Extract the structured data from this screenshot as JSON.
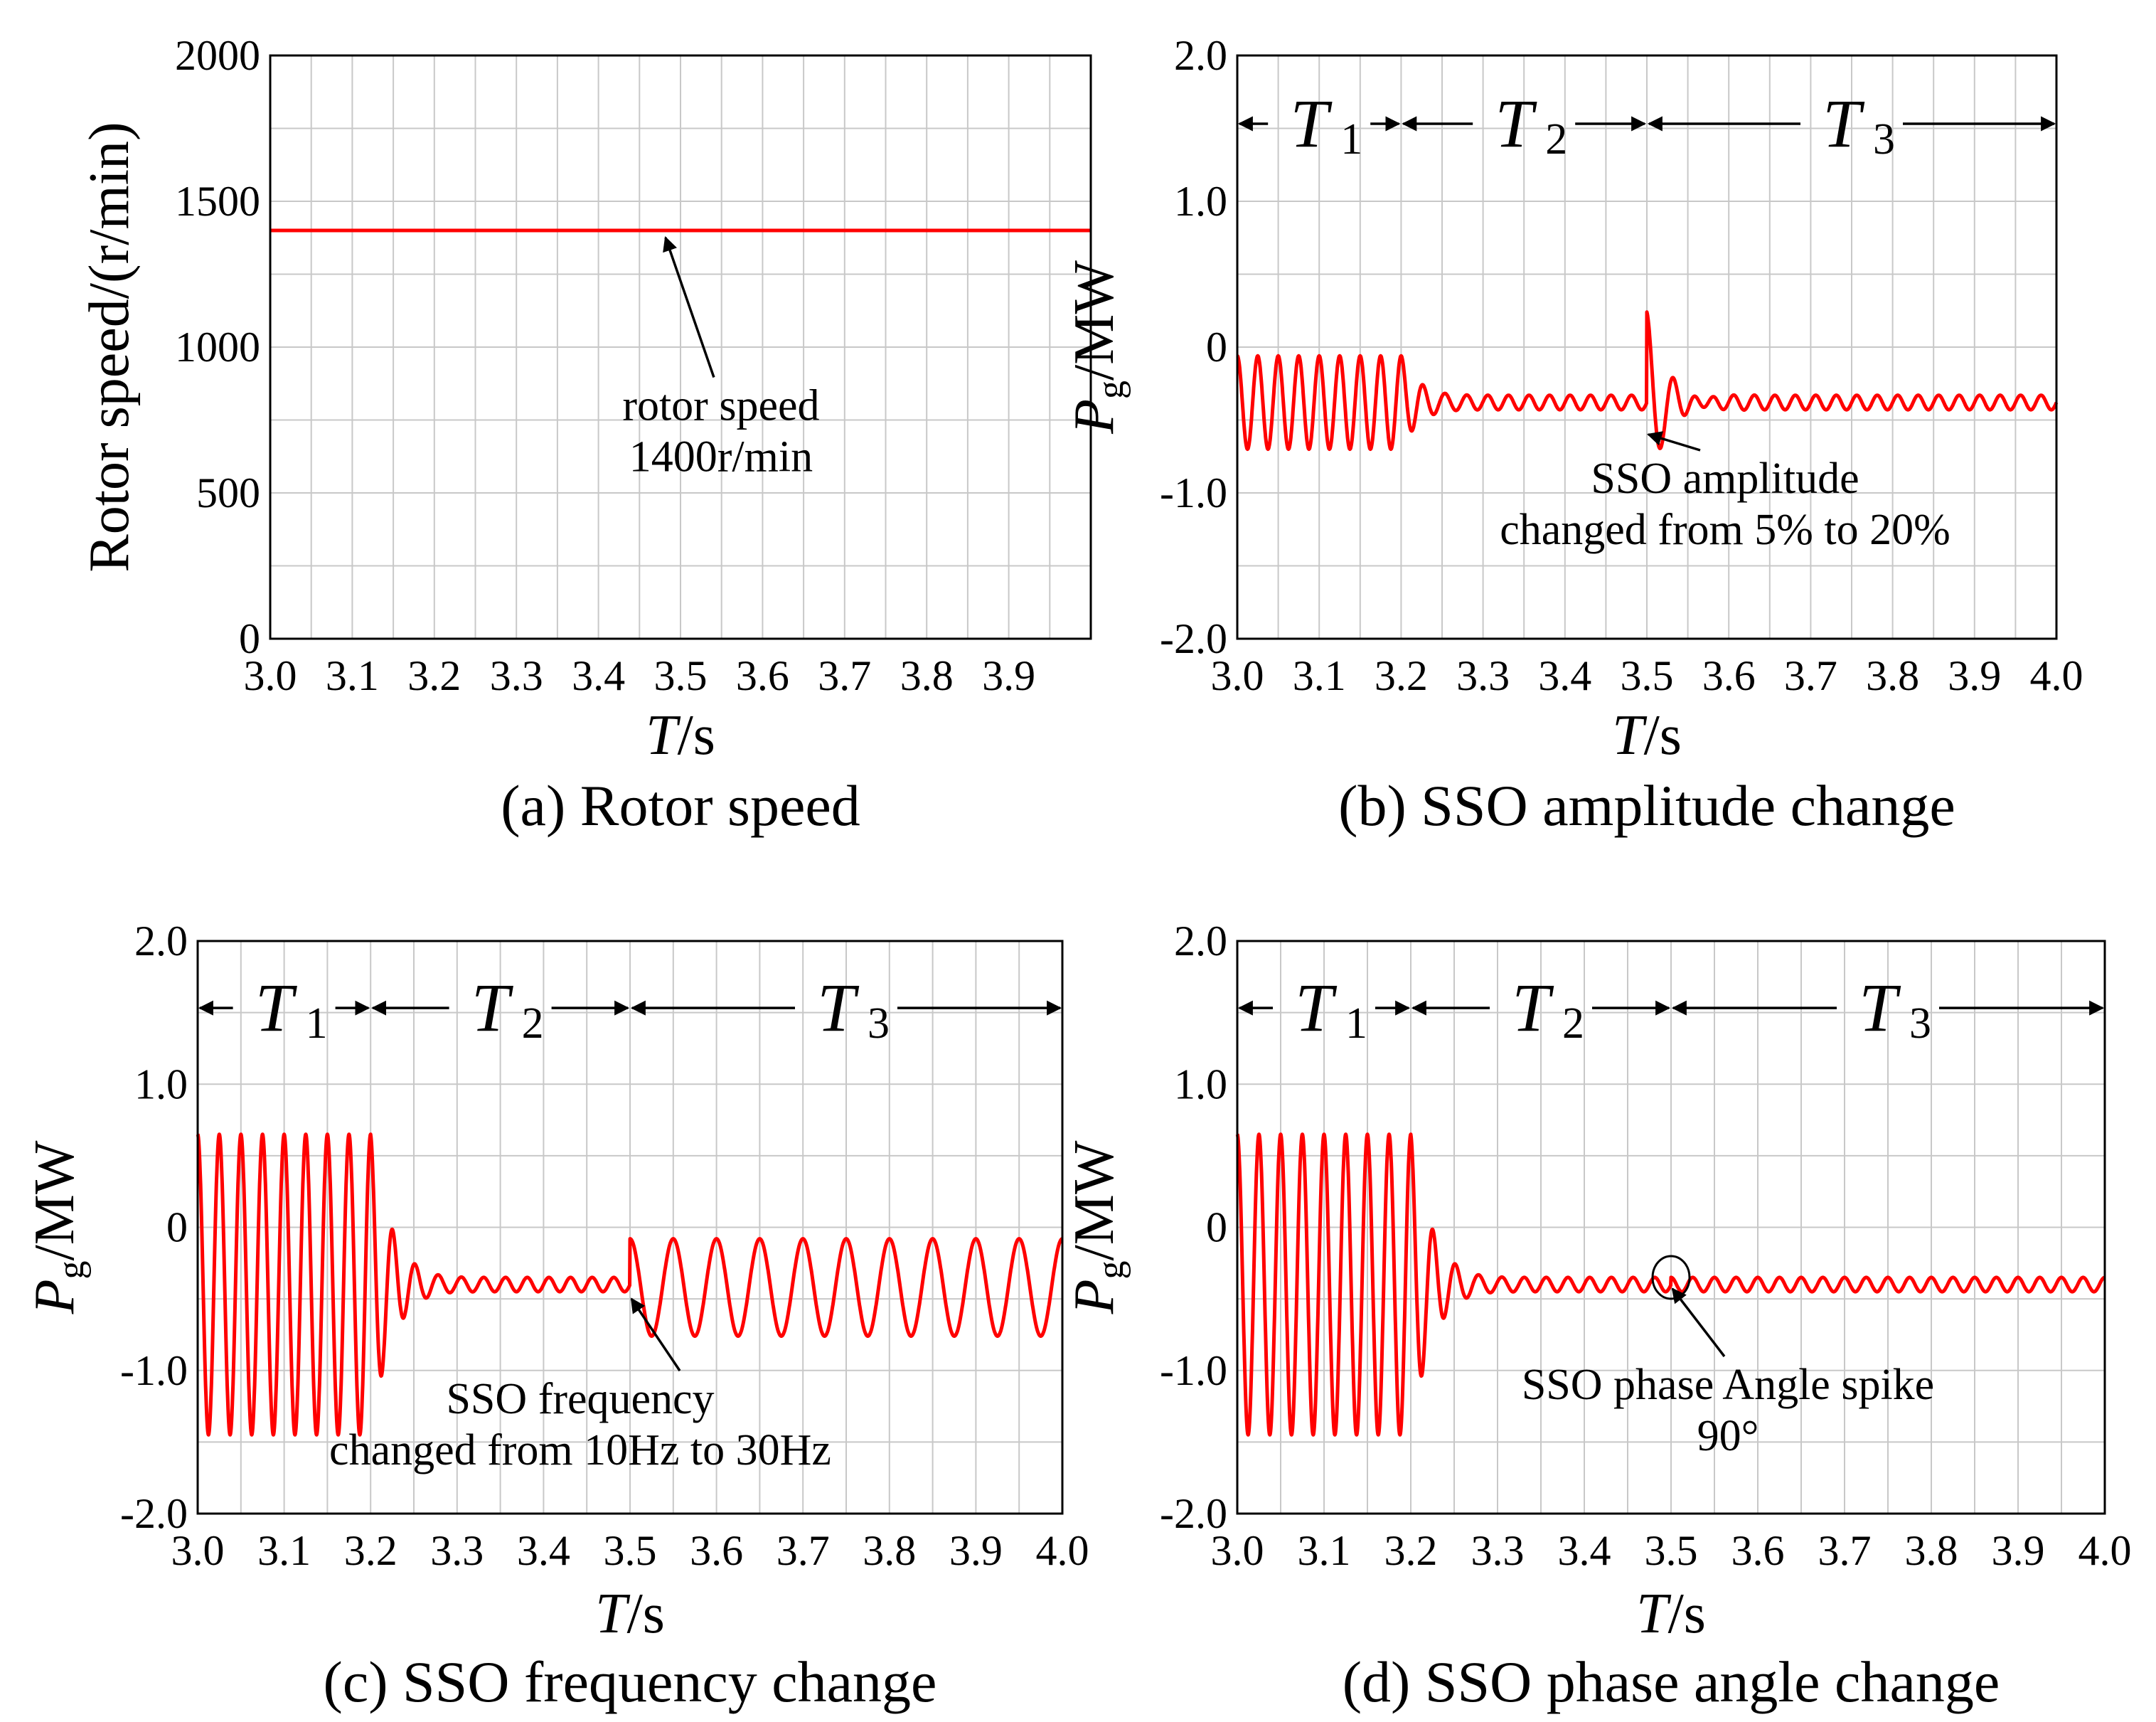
{
  "chart_data": [
    {
      "id": "a",
      "type": "line",
      "caption": "(a) Rotor speed",
      "xlabel_italic": "T",
      "xlabel_unit": "/s",
      "ylabel": "Rotor speed/(r/min)",
      "xlim": [
        3.0,
        4.0
      ],
      "ylim": [
        0,
        2000
      ],
      "x_ticks": [
        "3.0",
        "3.1",
        "3.2",
        "3.3",
        "3.4",
        "3.5",
        "3.6",
        "3.7",
        "3.8",
        "3.9"
      ],
      "y_ticks": [
        "0",
        "500",
        "1000",
        "1500",
        "2000"
      ],
      "grid": true,
      "series": [
        {
          "name": "rotor speed",
          "model": "constant",
          "value": 1400
        }
      ],
      "annotations": [
        {
          "text_lines": [
            "rotor speed",
            "1400r/min"
          ],
          "points_to_x": 3.48,
          "points_to_y": 1400
        }
      ]
    },
    {
      "id": "b",
      "type": "line",
      "caption": "(b) SSO amplitude change",
      "xlabel_italic": "T",
      "xlabel_unit": "/s",
      "ylabel_main": "P",
      "ylabel_sub": "g",
      "ylabel_unit": "/MW",
      "xlim": [
        3.0,
        4.0
      ],
      "ylim": [
        -2.0,
        2.0
      ],
      "x_ticks": [
        "3.0",
        "3.1",
        "3.2",
        "3.3",
        "3.4",
        "3.5",
        "3.6",
        "3.7",
        "3.8",
        "3.9",
        "4.0"
      ],
      "y_ticks": [
        "-2.0",
        "-1.0",
        "0",
        "1.0",
        "2.0"
      ],
      "grid": true,
      "segments": [
        {
          "label": "T",
          "sub": "1",
          "start": 3.0,
          "end": 3.2
        },
        {
          "label": "T",
          "sub": "2",
          "start": 3.2,
          "end": 3.5
        },
        {
          "label": "T",
          "sub": "3",
          "start": 3.5,
          "end": 4.0
        }
      ],
      "series": [
        {
          "name": "Pg",
          "model": "sso",
          "offset": -0.38,
          "base_amp": 0.05,
          "event_time": 3.5,
          "initial": {
            "center": -0.38,
            "amp": 0.32,
            "freq_hz": 40,
            "end": 3.2,
            "decay": 0.025
          },
          "post": {
            "freq_hz": 40,
            "amp": 0.05
          },
          "transient": {
            "amp": 0.62,
            "freq_hz": 30,
            "decay": 0.02,
            "start": 3.5
          }
        }
      ],
      "annotations": [
        {
          "text_lines": [
            "SSO amplitude",
            "changed from 5% to 20%"
          ],
          "points_to_x": 3.5,
          "points_to_y": -0.55
        }
      ]
    },
    {
      "id": "c",
      "type": "line",
      "caption": "(c) SSO frequency change",
      "xlabel_italic": "T",
      "xlabel_unit": "/s",
      "ylabel_main": "P",
      "ylabel_sub": "g",
      "ylabel_unit": "/MW",
      "xlim": [
        3.0,
        4.0
      ],
      "ylim": [
        -2.0,
        2.0
      ],
      "x_ticks": [
        "3.0",
        "3.1",
        "3.2",
        "3.3",
        "3.4",
        "3.5",
        "3.6",
        "3.7",
        "3.8",
        "3.9",
        "4.0"
      ],
      "y_ticks": [
        "-2.0",
        "-1.0",
        "0",
        "1.0",
        "2.0"
      ],
      "grid": true,
      "segments": [
        {
          "label": "T",
          "sub": "1",
          "start": 3.0,
          "end": 3.2
        },
        {
          "label": "T",
          "sub": "2",
          "start": 3.2,
          "end": 3.5
        },
        {
          "label": "T",
          "sub": "3",
          "start": 3.5,
          "end": 4.0
        }
      ],
      "series": [
        {
          "name": "Pg",
          "model": "sso_freq",
          "offset": -0.4,
          "initial": {
            "center": -0.4,
            "amp": 1.05,
            "freq_hz": 40,
            "end": 3.2,
            "decay": 0.025
          },
          "pre": {
            "freq_hz": 40,
            "amp": 0.05
          },
          "post": {
            "freq_hz": 20,
            "amp": 0.34,
            "center": -0.42,
            "start": 3.5
          }
        }
      ],
      "annotations": [
        {
          "text_lines": [
            "SSO frequency",
            "changed from 10Hz to 30Hz"
          ],
          "points_to_x": 3.5,
          "points_to_y": -0.45
        }
      ]
    },
    {
      "id": "d",
      "type": "line",
      "caption": "(d) SSO phase angle change",
      "xlabel_italic": "T",
      "xlabel_unit": "/s",
      "ylabel_main": "P",
      "ylabel_sub": "g",
      "ylabel_unit": "/MW",
      "xlim": [
        3.0,
        4.0
      ],
      "ylim": [
        -2.0,
        2.0
      ],
      "x_ticks": [
        "3.0",
        "3.1",
        "3.2",
        "3.3",
        "3.4",
        "3.5",
        "3.6",
        "3.7",
        "3.8",
        "3.9",
        "4.0"
      ],
      "y_ticks": [
        "-2.0",
        "-1.0",
        "0",
        "1.0",
        "2.0"
      ],
      "grid": true,
      "segments": [
        {
          "label": "T",
          "sub": "1",
          "start": 3.0,
          "end": 3.2
        },
        {
          "label": "T",
          "sub": "2",
          "start": 3.2,
          "end": 3.5
        },
        {
          "label": "T",
          "sub": "3",
          "start": 3.5,
          "end": 4.0
        }
      ],
      "series": [
        {
          "name": "Pg",
          "model": "sso_phase",
          "offset": -0.38,
          "initial": {
            "center": -0.4,
            "amp": 1.05,
            "freq_hz": 40,
            "end": 3.2,
            "decay": 0.025
          },
          "steady": {
            "freq_hz": 40,
            "amp": 0.05
          },
          "phase_jump_deg": 90,
          "event_time": 3.5
        }
      ],
      "annotations": [
        {
          "text_lines": [
            "SSO phase Angle spike",
            "90°"
          ],
          "points_to_x": 3.5,
          "points_to_y": -0.38,
          "circled": true
        }
      ]
    }
  ]
}
